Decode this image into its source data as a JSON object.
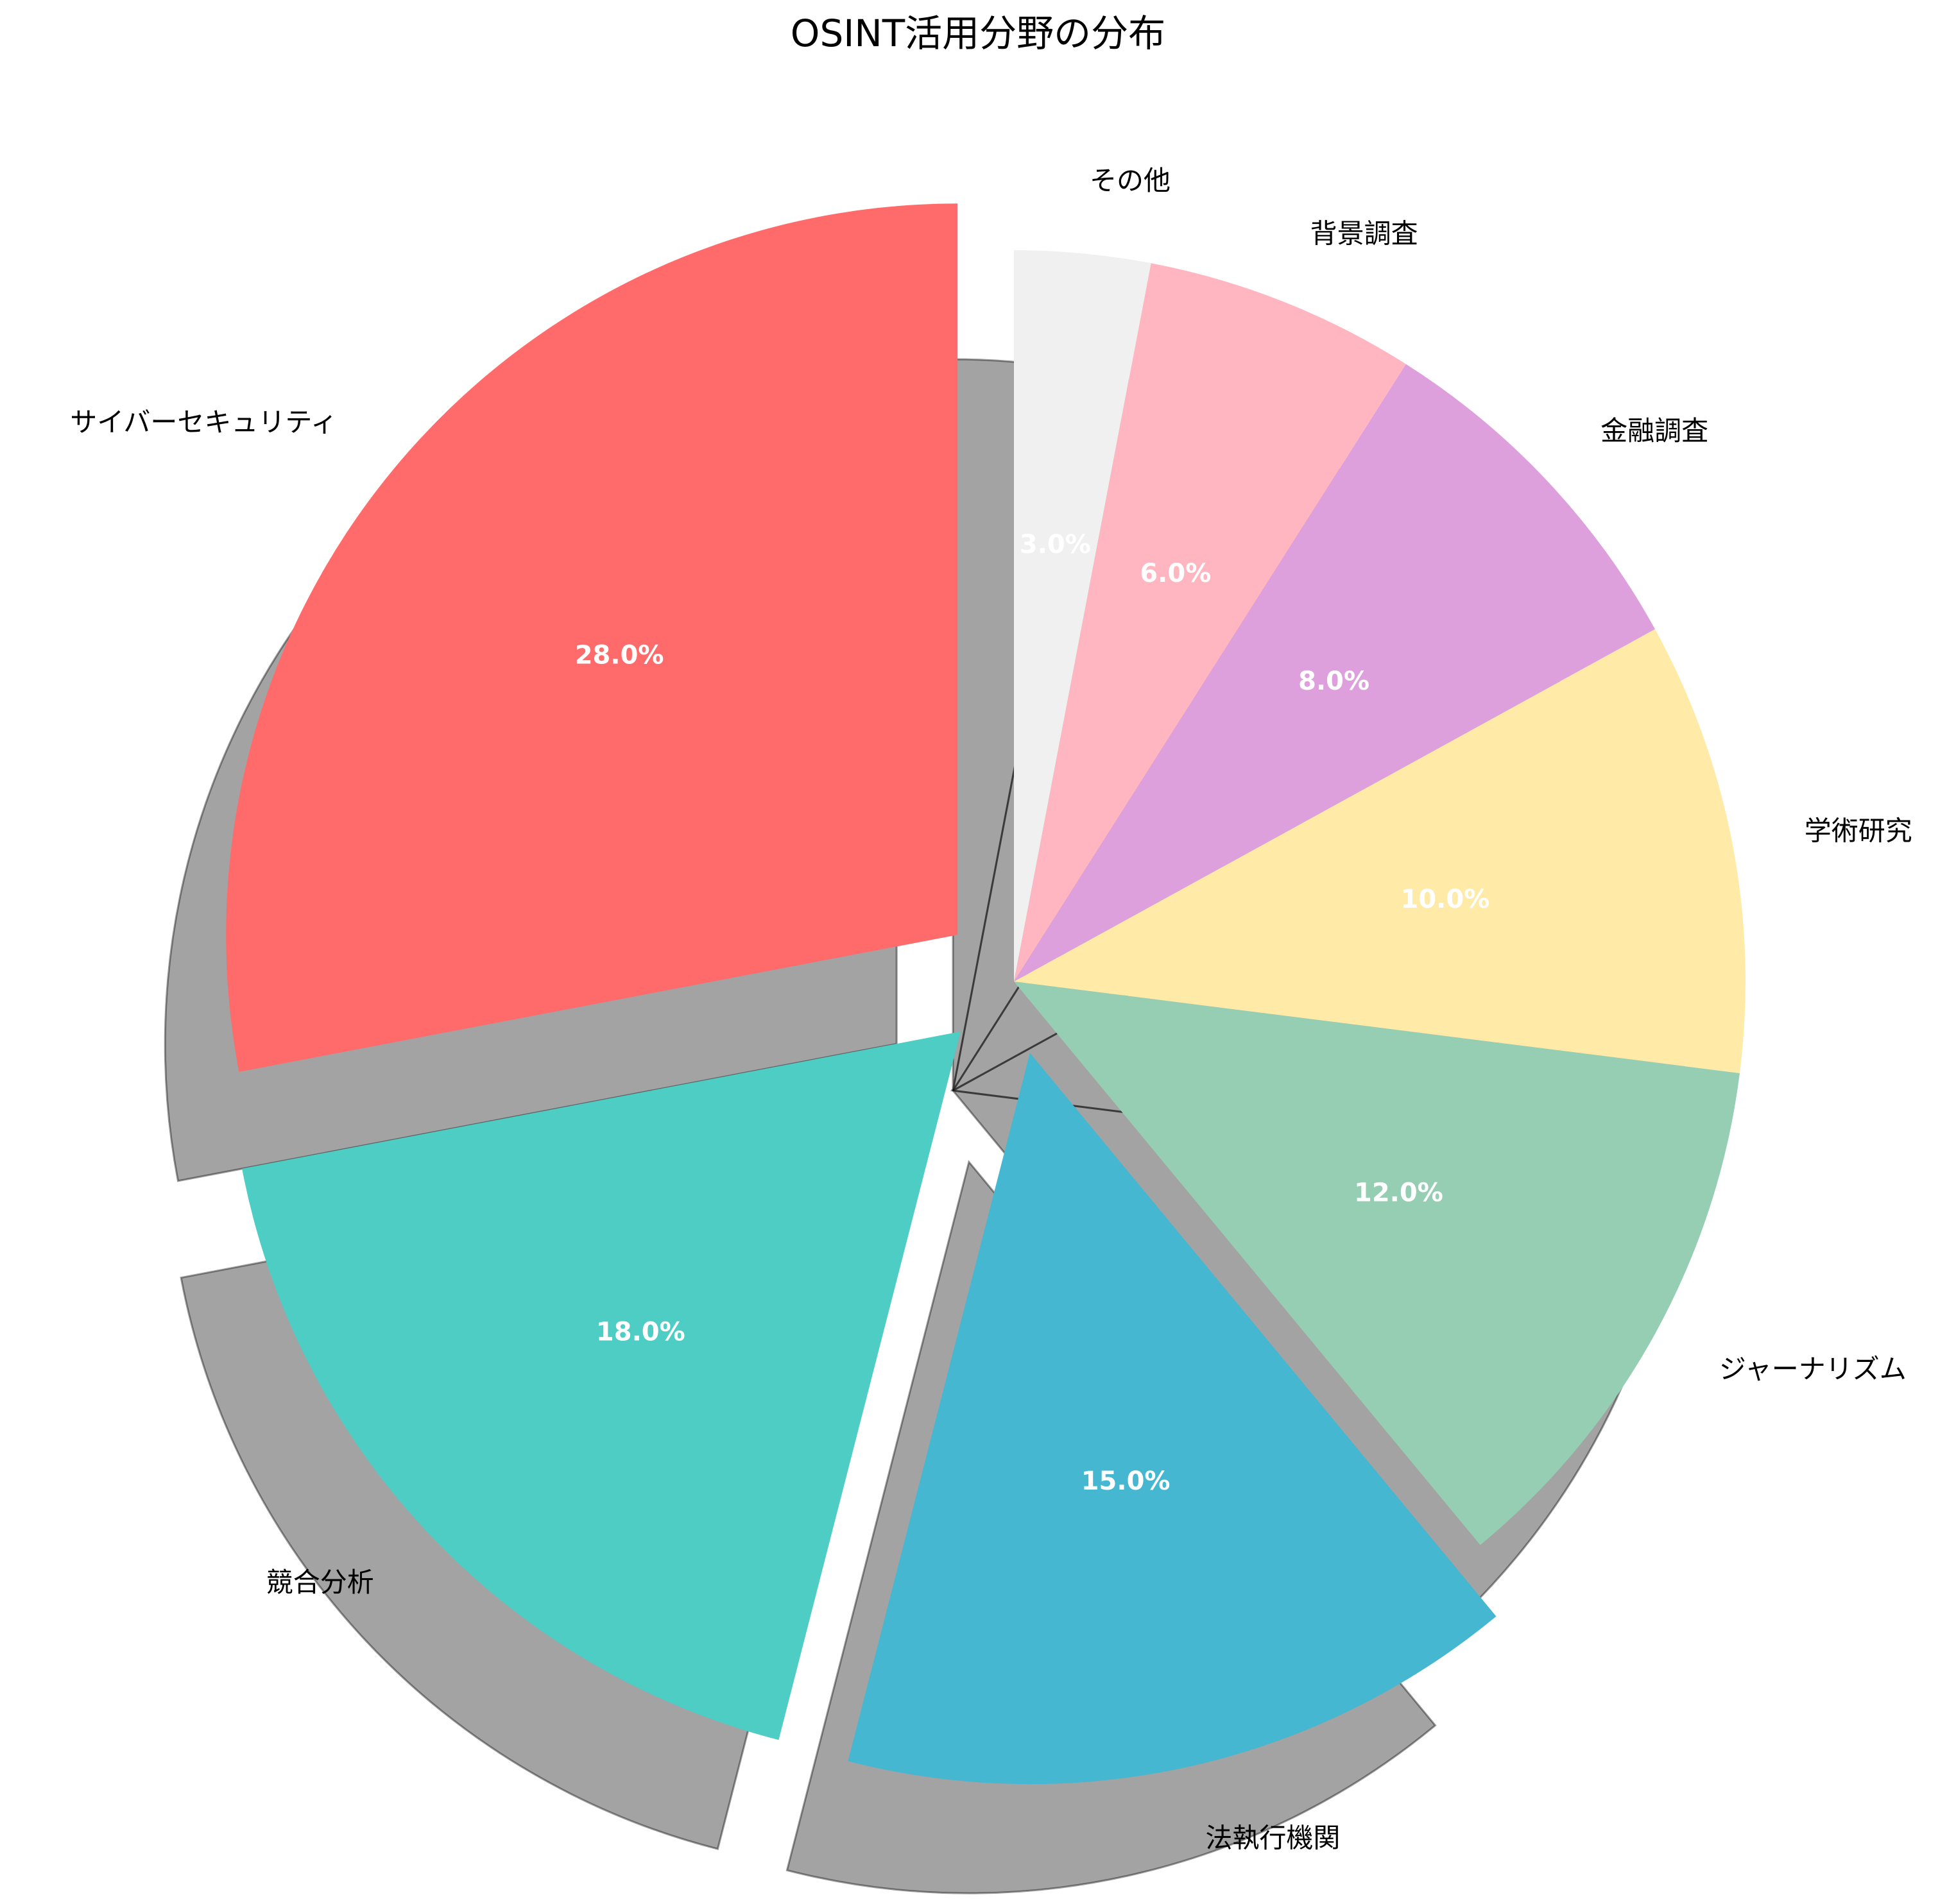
{
  "chart_data": {
    "type": "pie",
    "title": "OSINT活用分野の分布",
    "categories": [
      "サイバーセキュリティ",
      "競合分析",
      "法執行機関",
      "ジャーナリズム",
      "学術研究",
      "金融調査",
      "背景調査",
      "その他"
    ],
    "values": [
      28,
      18,
      15,
      12,
      10,
      8,
      6,
      3
    ],
    "percent_labels": [
      "28.0%",
      "18.0%",
      "15.0%",
      "12.0%",
      "10.0%",
      "8.0%",
      "6.0%",
      "3.0%"
    ],
    "colors": [
      "#FF6B6B",
      "#4ECDC4",
      "#45B7D1",
      "#96CEB4",
      "#FFEAA7",
      "#DDA0DD",
      "#FFB6C1",
      "#F0F0F0"
    ],
    "exploded": [
      true,
      true,
      true,
      false,
      false,
      false,
      false,
      false
    ],
    "shadow": true,
    "start_angle_deg": 90,
    "direction": "counterclockwise",
    "legend": "none"
  }
}
